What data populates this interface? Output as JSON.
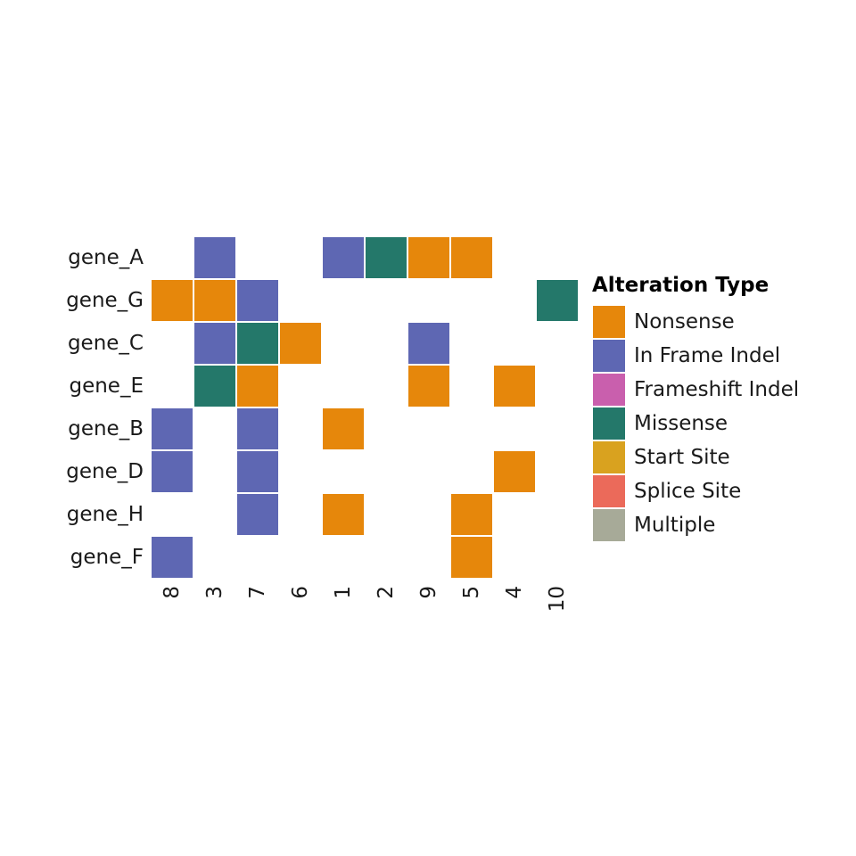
{
  "chart_data": {
    "type": "heatmap",
    "title": "",
    "xlabel": "",
    "ylabel": "",
    "genes": [
      "gene_A",
      "gene_G",
      "gene_C",
      "gene_E",
      "gene_B",
      "gene_D",
      "gene_H",
      "gene_F"
    ],
    "samples": [
      "8",
      "3",
      "7",
      "6",
      "1",
      "2",
      "9",
      "5",
      "4",
      "10"
    ],
    "cells": [
      {
        "gene": "gene_A",
        "sample": "3",
        "type": "In Frame Indel"
      },
      {
        "gene": "gene_A",
        "sample": "1",
        "type": "In Frame Indel"
      },
      {
        "gene": "gene_A",
        "sample": "2",
        "type": "Missense"
      },
      {
        "gene": "gene_A",
        "sample": "9",
        "type": "Nonsense"
      },
      {
        "gene": "gene_A",
        "sample": "5",
        "type": "Nonsense"
      },
      {
        "gene": "gene_G",
        "sample": "8",
        "type": "Nonsense"
      },
      {
        "gene": "gene_G",
        "sample": "3",
        "type": "Nonsense"
      },
      {
        "gene": "gene_G",
        "sample": "7",
        "type": "In Frame Indel"
      },
      {
        "gene": "gene_G",
        "sample": "10",
        "type": "Missense"
      },
      {
        "gene": "gene_C",
        "sample": "3",
        "type": "In Frame Indel"
      },
      {
        "gene": "gene_C",
        "sample": "7",
        "type": "Missense"
      },
      {
        "gene": "gene_C",
        "sample": "6",
        "type": "Nonsense"
      },
      {
        "gene": "gene_C",
        "sample": "9",
        "type": "In Frame Indel"
      },
      {
        "gene": "gene_E",
        "sample": "3",
        "type": "Missense"
      },
      {
        "gene": "gene_E",
        "sample": "7",
        "type": "Nonsense"
      },
      {
        "gene": "gene_E",
        "sample": "9",
        "type": "Nonsense"
      },
      {
        "gene": "gene_E",
        "sample": "4",
        "type": "Nonsense"
      },
      {
        "gene": "gene_B",
        "sample": "8",
        "type": "In Frame Indel"
      },
      {
        "gene": "gene_B",
        "sample": "7",
        "type": "In Frame Indel"
      },
      {
        "gene": "gene_B",
        "sample": "1",
        "type": "Nonsense"
      },
      {
        "gene": "gene_D",
        "sample": "8",
        "type": "In Frame Indel"
      },
      {
        "gene": "gene_D",
        "sample": "7",
        "type": "In Frame Indel"
      },
      {
        "gene": "gene_D",
        "sample": "4",
        "type": "Nonsense"
      },
      {
        "gene": "gene_H",
        "sample": "7",
        "type": "In Frame Indel"
      },
      {
        "gene": "gene_H",
        "sample": "1",
        "type": "Nonsense"
      },
      {
        "gene": "gene_H",
        "sample": "5",
        "type": "Nonsense"
      },
      {
        "gene": "gene_F",
        "sample": "8",
        "type": "In Frame Indel"
      },
      {
        "gene": "gene_F",
        "sample": "5",
        "type": "Nonsense"
      }
    ],
    "legend": {
      "title": "Alteration Type",
      "placement": "right",
      "items": [
        {
          "label": "Nonsense",
          "color": "#E6870B"
        },
        {
          "label": "In Frame Indel",
          "color": "#5E67B3"
        },
        {
          "label": "Frameshift Indel",
          "color": "#C95FAD"
        },
        {
          "label": "Missense",
          "color": "#24786A"
        },
        {
          "label": "Start Site",
          "color": "#D9A21F"
        },
        {
          "label": "Splice Site",
          "color": "#EB6A5A"
        },
        {
          "label": "Multiple",
          "color": "#A7AA98"
        }
      ]
    },
    "grid": false
  }
}
